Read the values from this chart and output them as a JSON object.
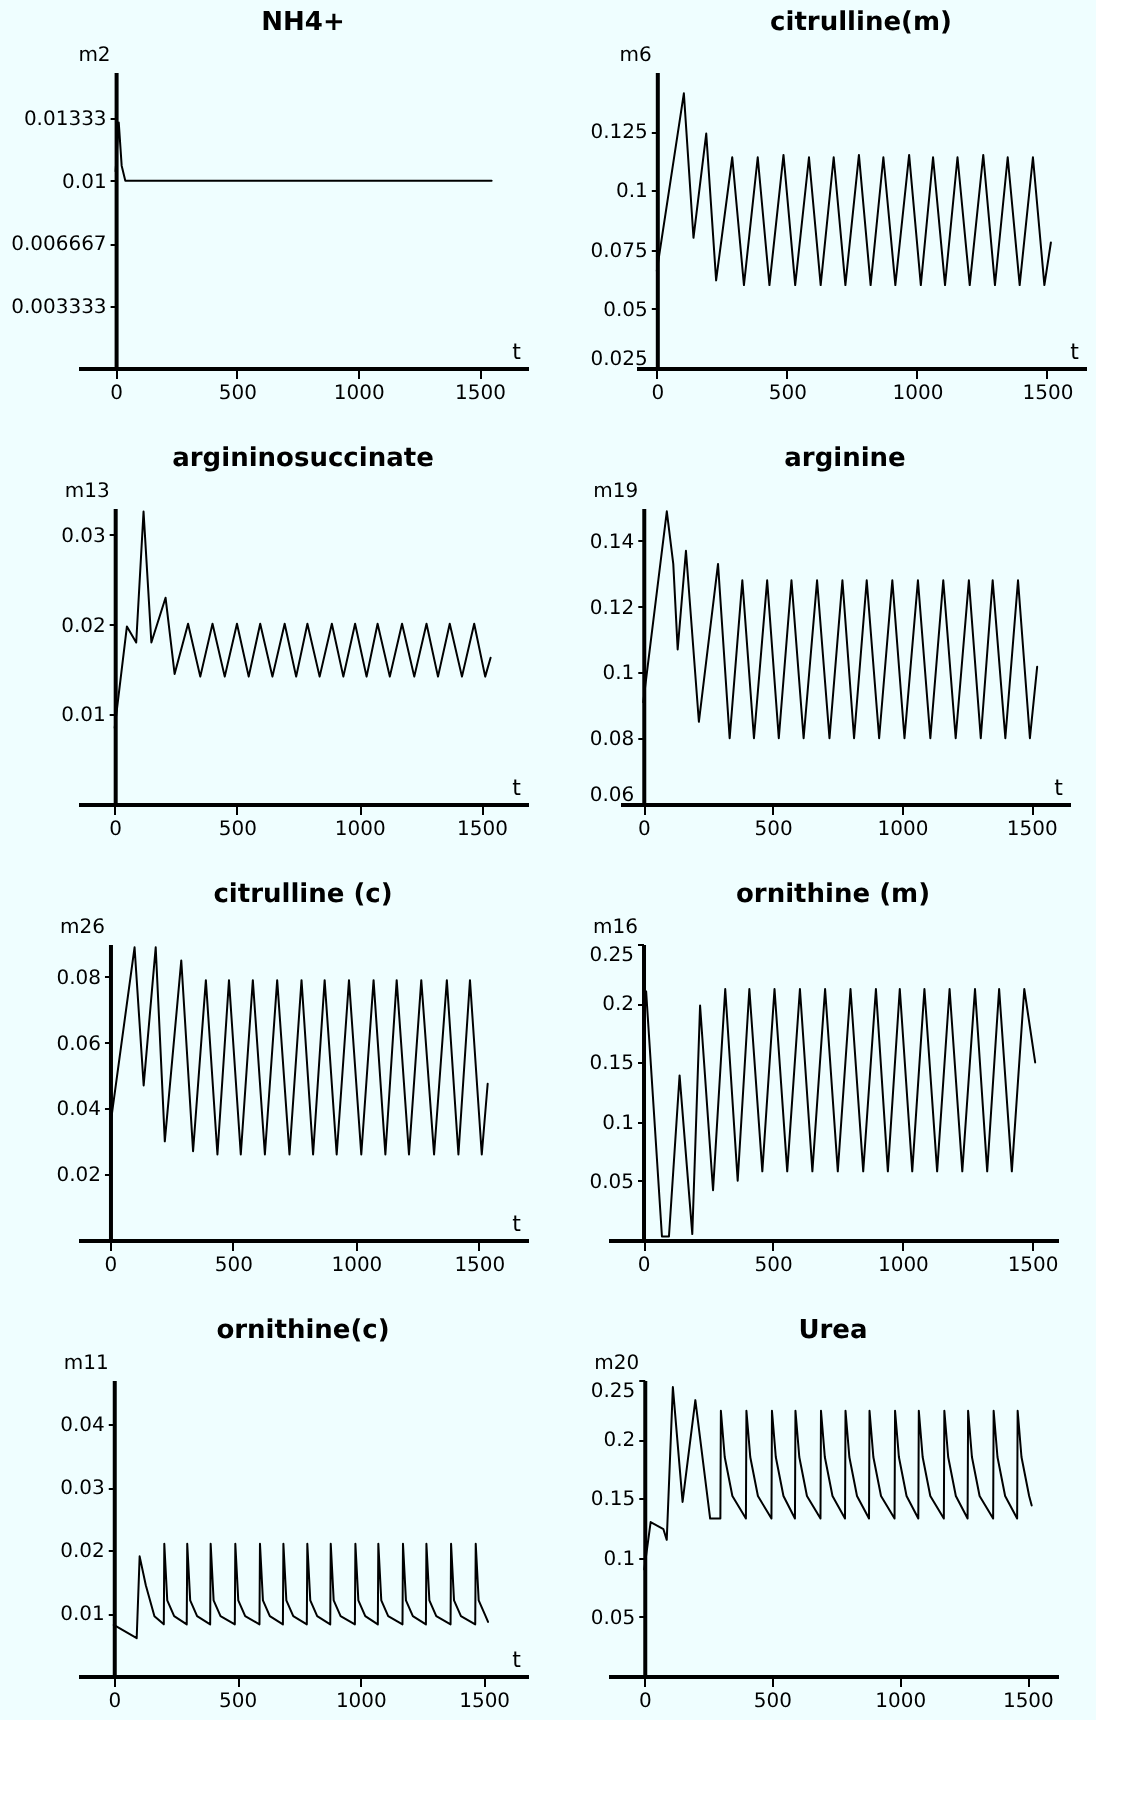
{
  "chart_data": [
    {
      "type": "line",
      "title": "NH4+",
      "xlabel": "t",
      "ylabel": "m2",
      "xlim": [
        -155,
        1700
      ],
      "ylim": [
        0,
        0.0158
      ],
      "xticks": [
        0,
        500,
        1000,
        1500
      ],
      "yticks": [
        0.003333,
        0.006667,
        0.01,
        0.01333
      ],
      "series": [
        {
          "color": "#000000",
          "x": [
            0,
            13,
            25,
            40,
            1550
          ],
          "values": [
            0.0105,
            0.0131,
            0.0108,
            0.01,
            0.01
          ]
        }
      ]
    },
    {
      "type": "line",
      "title": "citrulline(m)",
      "xlabel": "t",
      "ylabel": "m6",
      "xlim": [
        -80,
        1650
      ],
      "ylim": [
        0.025,
        0.15
      ],
      "xticks": [
        0,
        500,
        1000,
        1500
      ],
      "yticks": [
        0.025,
        0.05,
        0.075,
        0.1,
        0.125
      ],
      "series": [
        {
          "color": "#000000",
          "x": [
            0,
            104,
            141,
            190,
            228,
            290,
            335,
            388,
            433,
            487,
            532,
            585,
            630,
            680,
            725,
            777,
            822,
            871,
            917,
            970,
            1015,
            1062,
            1108,
            1156,
            1203,
            1255,
            1300,
            1349,
            1395,
            1446,
            1490,
            1515
          ],
          "values": [
            0.066,
            0.141,
            0.08,
            0.124,
            0.062,
            0.114,
            0.06,
            0.114,
            0.06,
            0.115,
            0.06,
            0.114,
            0.06,
            0.114,
            0.06,
            0.115,
            0.06,
            0.114,
            0.06,
            0.115,
            0.06,
            0.114,
            0.06,
            0.114,
            0.06,
            0.115,
            0.06,
            0.114,
            0.06,
            0.114,
            0.06,
            0.078
          ]
        }
      ]
    },
    {
      "type": "line",
      "title": "argininosuccinate",
      "xlabel": "t",
      "ylabel": "m13",
      "xlim": [
        -150,
        1690
      ],
      "ylim": [
        0,
        0.033
      ],
      "xticks": [
        0,
        500,
        1000,
        1500
      ],
      "yticks": [
        0.01,
        0.02,
        0.03
      ],
      "series": [
        {
          "color": "#000000",
          "x": [
            0,
            50,
            88,
            118,
            150,
            208,
            245,
            300,
            350,
            400,
            450,
            500,
            548,
            595,
            645,
            695,
            742,
            788,
            838,
            888,
            935,
            983,
            1030,
            1075,
            1125,
            1175,
            1225,
            1275,
            1322,
            1370,
            1420,
            1470,
            1515,
            1537
          ],
          "values": [
            0.0085,
            0.0198,
            0.018,
            0.0326,
            0.018,
            0.023,
            0.0145,
            0.0201,
            0.0142,
            0.0201,
            0.0142,
            0.0201,
            0.0142,
            0.0201,
            0.0142,
            0.0201,
            0.0142,
            0.0201,
            0.0142,
            0.0201,
            0.0142,
            0.0201,
            0.0142,
            0.0201,
            0.0142,
            0.0201,
            0.0142,
            0.0201,
            0.0142,
            0.0201,
            0.0142,
            0.0201,
            0.0142,
            0.0163
          ]
        }
      ]
    },
    {
      "type": "line",
      "title": "arginine",
      "xlabel": "t",
      "ylabel": "m19",
      "xlim": [
        -90,
        1650
      ],
      "ylim": [
        0.06,
        0.15
      ],
      "xticks": [
        0,
        500,
        1000,
        1500
      ],
      "yticks": [
        0.06,
        0.08,
        0.1,
        0.12,
        0.14
      ],
      "series": [
        {
          "color": "#000000",
          "x": [
            0,
            91,
            116,
            133,
            165,
            215,
            289,
            334,
            383,
            428,
            479,
            524,
            573,
            620,
            672,
            720,
            770,
            815,
            864,
            912,
            963,
            1010,
            1062,
            1110,
            1160,
            1208,
            1259,
            1305,
            1351,
            1400,
            1449,
            1495,
            1523
          ],
          "values": [
            0.091,
            0.149,
            0.133,
            0.107,
            0.137,
            0.085,
            0.133,
            0.08,
            0.128,
            0.08,
            0.128,
            0.08,
            0.128,
            0.08,
            0.128,
            0.08,
            0.128,
            0.08,
            0.128,
            0.08,
            0.128,
            0.08,
            0.128,
            0.08,
            0.128,
            0.08,
            0.128,
            0.08,
            0.128,
            0.08,
            0.128,
            0.08,
            0.1017
          ]
        }
      ]
    },
    {
      "type": "line",
      "title": "citrulline (c)",
      "xlabel": "t",
      "ylabel": "m26",
      "xlim": [
        -130,
        1700
      ],
      "ylim": [
        0,
        0.09
      ],
      "xticks": [
        0,
        500,
        1000,
        1500
      ],
      "yticks": [
        0.02,
        0.04,
        0.06,
        0.08
      ],
      "series": [
        {
          "color": "#000000",
          "x": [
            0,
            100,
            137,
            186,
            223,
            290,
            338,
            390,
            437,
            484,
            532,
            581,
            630,
            680,
            730,
            779,
            826,
            873,
            922,
            972,
            1022,
            1072,
            1120,
            1166,
            1216,
            1266,
            1318,
            1370,
            1417,
            1464,
            1512,
            1536
          ],
          "values": [
            0.034,
            0.089,
            0.047,
            0.089,
            0.03,
            0.085,
            0.027,
            0.079,
            0.026,
            0.079,
            0.026,
            0.079,
            0.026,
            0.079,
            0.026,
            0.079,
            0.026,
            0.079,
            0.026,
            0.079,
            0.026,
            0.079,
            0.026,
            0.079,
            0.026,
            0.079,
            0.026,
            0.079,
            0.026,
            0.079,
            0.026,
            0.0475
          ]
        }
      ]
    },
    {
      "type": "line",
      "title": "ornithine (m)",
      "ylabel": "m16",
      "xlim": [
        -135,
        1600
      ],
      "ylim": [
        0,
        0.25
      ],
      "xticks": [
        0,
        500,
        1000,
        1500
      ],
      "yticks": [
        0.05,
        0.1,
        0.15,
        0.2,
        0.25
      ],
      "series": [
        {
          "color": "#000000",
          "x": [
            0,
            12,
            73,
            100,
            141,
            190,
            220,
            270,
            317,
            365,
            410,
            460,
            507,
            556,
            605,
            653,
            702,
            751,
            800,
            849,
            898,
            944,
            990,
            1038,
            1085,
            1134,
            1182,
            1231,
            1280,
            1327,
            1373,
            1422,
            1470,
            1512
          ],
          "values": [
            0.2,
            0.21,
            0.003,
            0.003,
            0.139,
            0.005,
            0.198,
            0.042,
            0.212,
            0.05,
            0.212,
            0.058,
            0.212,
            0.058,
            0.212,
            0.058,
            0.212,
            0.058,
            0.212,
            0.058,
            0.212,
            0.058,
            0.212,
            0.058,
            0.212,
            0.058,
            0.212,
            0.058,
            0.212,
            0.058,
            0.212,
            0.058,
            0.212,
            0.15
          ]
        }
      ]
    },
    {
      "type": "line",
      "title": "ornithine(c)",
      "xlabel": "t",
      "ylabel": "m11",
      "xlim": [
        -145,
        1680
      ],
      "ylim": [
        0,
        0.047
      ],
      "xticks": [
        0,
        500,
        1000,
        1500
      ],
      "yticks": [
        0.01,
        0.02,
        0.03,
        0.04
      ],
      "series": [
        {
          "color": "#000000",
          "x": [
            0,
            93,
            105,
            130,
            165,
            203,
            205,
            217,
            245,
            296,
            298,
            310,
            338,
            391,
            393,
            405,
            433,
            491,
            493,
            505,
            533,
            591,
            593,
            605,
            633,
            686,
            688,
            700,
            728,
            783,
            785,
            797,
            825,
            878,
            880,
            892,
            920,
            978,
            980,
            992,
            1020,
            1071,
            1073,
            1085,
            1113,
            1171,
            1173,
            1185,
            1213,
            1266,
            1268,
            1280,
            1308,
            1366,
            1368,
            1380,
            1408,
            1466,
            1468,
            1480,
            1508,
            1518
          ],
          "values": [
            0.0081,
            0.006,
            0.019,
            0.0144,
            0.0095,
            0.0082,
            0.021,
            0.012,
            0.0095,
            0.0082,
            0.021,
            0.012,
            0.0095,
            0.0082,
            0.021,
            0.012,
            0.0095,
            0.0082,
            0.021,
            0.012,
            0.0095,
            0.0082,
            0.021,
            0.012,
            0.0095,
            0.0082,
            0.021,
            0.012,
            0.0095,
            0.0082,
            0.021,
            0.012,
            0.0095,
            0.0082,
            0.021,
            0.012,
            0.0095,
            0.0082,
            0.021,
            0.012,
            0.0095,
            0.0082,
            0.021,
            0.012,
            0.0095,
            0.0082,
            0.021,
            0.012,
            0.0095,
            0.0082,
            0.021,
            0.012,
            0.0095,
            0.0082,
            0.021,
            0.012,
            0.0095,
            0.0082,
            0.021,
            0.012,
            0.0095,
            0.0086
          ]
        }
      ]
    },
    {
      "type": "line",
      "title": "Urea",
      "ylabel": "m20",
      "xlim": [
        -142,
        1620
      ],
      "ylim": [
        0,
        0.25
      ],
      "xticks": [
        0,
        500,
        1000,
        1500
      ],
      "yticks": [
        0.05,
        0.1,
        0.15,
        0.2,
        0.25
      ],
      "series": [
        {
          "color": "#000000",
          "x": [
            0,
            25,
            75,
            88,
            112,
            150,
            200,
            258,
            298,
            300,
            315,
            345,
            398,
            400,
            415,
            445,
            498,
            500,
            515,
            545,
            590,
            592,
            607,
            637,
            690,
            692,
            707,
            737,
            786,
            788,
            803,
            833,
            880,
            882,
            897,
            927,
            980,
            982,
            997,
            1027,
            1073,
            1075,
            1090,
            1120,
            1173,
            1175,
            1190,
            1220,
            1266,
            1268,
            1283,
            1313,
            1366,
            1368,
            1383,
            1413,
            1460,
            1462,
            1477,
            1507,
            1517
          ],
          "values": [
            0.09,
            0.13,
            0.124,
            0.115,
            0.244,
            0.147,
            0.233,
            0.133,
            0.133,
            0.224,
            0.185,
            0.152,
            0.133,
            0.224,
            0.185,
            0.152,
            0.133,
            0.224,
            0.185,
            0.152,
            0.133,
            0.224,
            0.185,
            0.152,
            0.133,
            0.224,
            0.185,
            0.152,
            0.133,
            0.224,
            0.185,
            0.152,
            0.133,
            0.224,
            0.185,
            0.152,
            0.133,
            0.224,
            0.185,
            0.152,
            0.133,
            0.224,
            0.185,
            0.152,
            0.133,
            0.224,
            0.185,
            0.152,
            0.133,
            0.224,
            0.185,
            0.152,
            0.133,
            0.224,
            0.185,
            0.152,
            0.133,
            0.224,
            0.185,
            0.152,
            0.144
          ]
        }
      ]
    }
  ]
}
